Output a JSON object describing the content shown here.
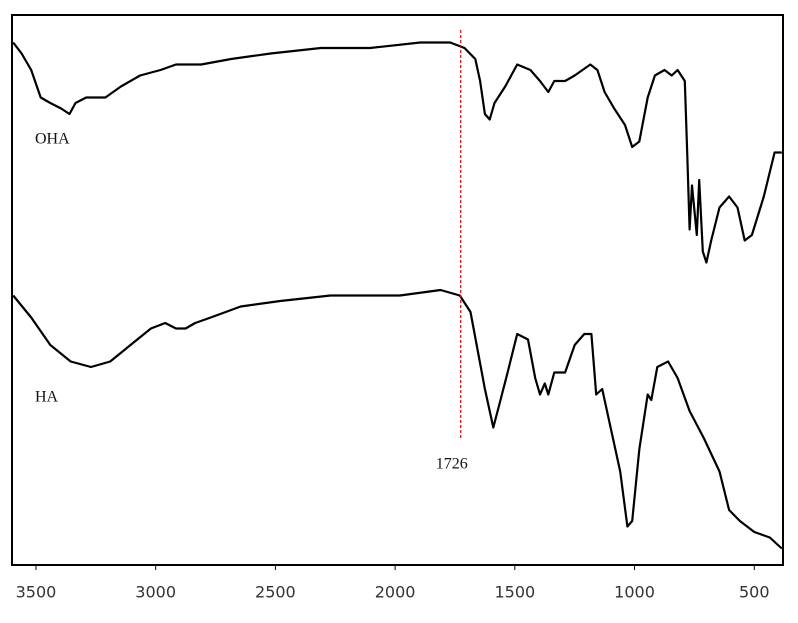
{
  "chart_data": {
    "type": "line",
    "xlim": [
      3600,
      380
    ],
    "ylim": [
      0,
      100
    ],
    "xticks": [
      3500,
      3000,
      2500,
      2000,
      1500,
      1000,
      500
    ],
    "series": [
      {
        "name": "OHA",
        "color": "#000000",
        "x": [
          3595,
          3560,
          3520,
          3480,
          3440,
          3395,
          3360,
          3335,
          3290,
          3250,
          3210,
          3145,
          3065,
          2980,
          2915,
          2875,
          2810,
          2685,
          2520,
          2310,
          2105,
          1895,
          1770,
          1710,
          1665,
          1645,
          1625,
          1605,
          1585,
          1540,
          1490,
          1435,
          1395,
          1360,
          1335,
          1290,
          1250,
          1185,
          1155,
          1125,
          1085,
          1040,
          1010,
          980,
          945,
          915,
          875,
          845,
          820,
          790,
          780,
          770,
          760,
          740,
          730,
          715,
          700,
          680,
          645,
          605,
          570,
          540,
          510,
          460,
          415,
          385
        ],
        "values": [
          95,
          93,
          90,
          85,
          84,
          83,
          82,
          84,
          85,
          85,
          85,
          87,
          89,
          90,
          91,
          91,
          91,
          92,
          93,
          94,
          94,
          95,
          95,
          94,
          92,
          88,
          82,
          81,
          84,
          87,
          91,
          90,
          88,
          86,
          88,
          88,
          89,
          91,
          90,
          86,
          83,
          80,
          76,
          77,
          85,
          89,
          90,
          89,
          90,
          88,
          75,
          61,
          69,
          60,
          70,
          57,
          55,
          59,
          65,
          67,
          65,
          59,
          60,
          67,
          75,
          75
        ]
      },
      {
        "name": "HA",
        "color": "#000000",
        "x": [
          3595,
          3520,
          3440,
          3355,
          3270,
          3190,
          3105,
          3020,
          2960,
          2915,
          2875,
          2835,
          2770,
          2645,
          2480,
          2270,
          1980,
          1810,
          1730,
          1685,
          1655,
          1625,
          1590,
          1560,
          1530,
          1490,
          1445,
          1415,
          1395,
          1375,
          1360,
          1335,
          1290,
          1250,
          1210,
          1180,
          1160,
          1135,
          1105,
          1060,
          1030,
          1010,
          980,
          945,
          930,
          905,
          860,
          820,
          770,
          710,
          645,
          605,
          560,
          500,
          435,
          385
        ],
        "values": [
          49,
          45,
          40,
          37,
          36,
          37,
          40,
          43,
          44,
          43,
          43,
          44,
          45,
          47,
          48,
          49,
          49,
          50,
          49,
          46,
          39,
          32,
          25,
          30,
          35,
          42,
          41,
          34,
          31,
          33,
          31,
          35,
          35,
          40,
          42,
          42,
          31,
          32,
          26,
          17,
          7,
          8,
          21,
          31,
          30,
          36,
          37,
          34,
          28,
          23,
          17,
          10,
          8,
          6,
          5,
          3
        ]
      }
    ],
    "vline": {
      "x": 1726,
      "label": "1726",
      "color": "#e00000"
    }
  }
}
